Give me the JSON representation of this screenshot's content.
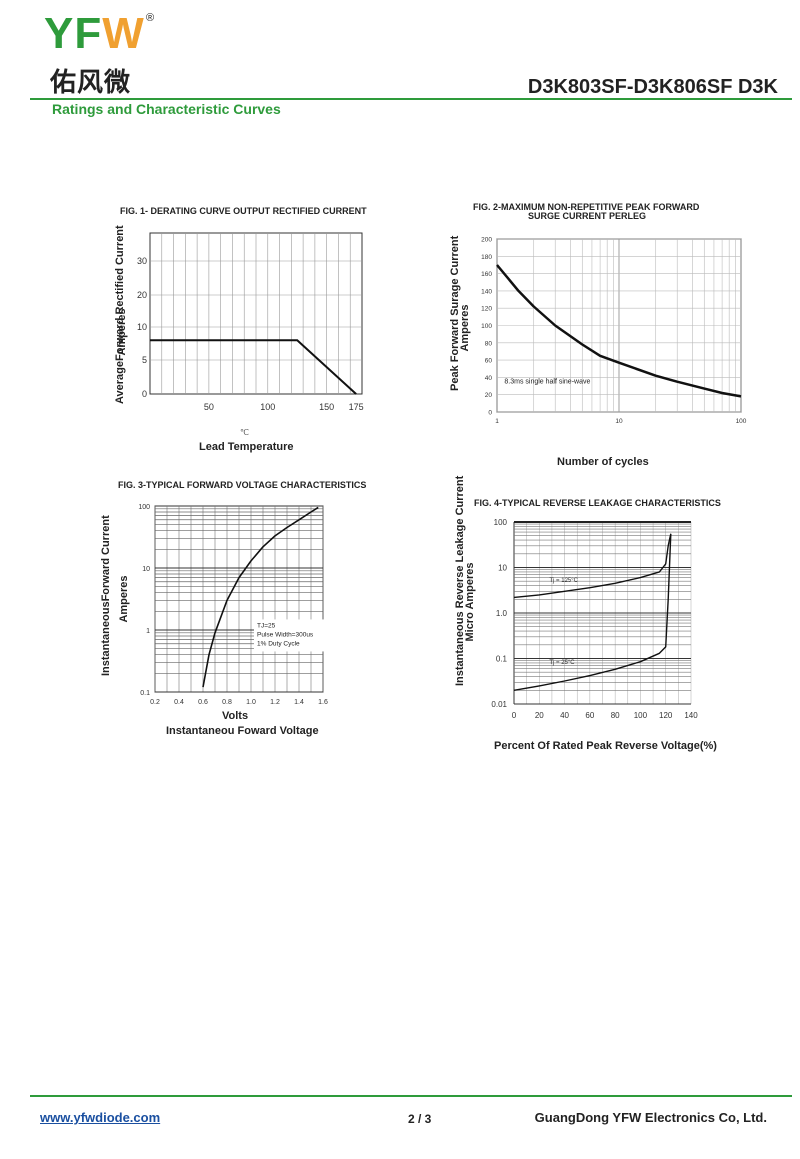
{
  "header": {
    "logo_latin": "YFW",
    "logo_registered": "®",
    "logo_chinese": "佑风微",
    "part_number": "D3K803SF-D3K806SF  D3K",
    "section_title": "Ratings and Characteristic Curves",
    "colors": {
      "brand_green": "#2e9b3b",
      "brand_orange": "#f0a030"
    }
  },
  "chart_data": [
    {
      "id": "fig1",
      "type": "line",
      "title": "FIG. 1- DERATING CURVE OUTPUT RECTIFIED CURRENT",
      "ylabel": "AverageForward Rectified Current",
      "ylabel2": "Amperes",
      "xlabel": "Lead Temperature",
      "x_unit": "℃",
      "xticks": [
        50,
        100,
        150,
        175
      ],
      "yticks": [
        0,
        5,
        10,
        20,
        30
      ],
      "xlim": [
        0,
        180
      ],
      "grid": true,
      "series": [
        {
          "x": [
            0,
            125,
            175
          ],
          "y": [
            8,
            8,
            0
          ]
        }
      ]
    },
    {
      "id": "fig2",
      "type": "line",
      "title": "FIG. 2-MAXIMUM NON-REPETITIVE PEAK FORWARD",
      "title2": "SURGE CURRENT PERLEG",
      "ylabel": "Peak  Forward Surage Current",
      "ylabel2": "Amperes",
      "xlabel": "Number of cycles",
      "xscale": "log",
      "xlim": [
        1,
        100
      ],
      "ylim": [
        0,
        200
      ],
      "xticks": [
        1,
        10,
        100
      ],
      "yticks": [
        0,
        20,
        40,
        60,
        80,
        100,
        120,
        140,
        160,
        180,
        200
      ],
      "grid": true,
      "annotation": "8.3ms single half sine-wave",
      "series": [
        {
          "x": [
            1,
            1.5,
            2,
            3,
            5,
            7,
            10,
            20,
            30,
            50,
            70,
            100
          ],
          "y": [
            170,
            140,
            122,
            100,
            78,
            65,
            57,
            42,
            35,
            27,
            22,
            18
          ]
        }
      ]
    },
    {
      "id": "fig3",
      "type": "line",
      "title": "FIG. 3-TYPICAL FORWARD VOLTAGE CHARACTERISTICS",
      "ylabel": "InstantaneousForward Current",
      "ylabel2": "Amperes",
      "xlabel": "Volts",
      "xlabel2": "Instantaneou Foward Voltage",
      "yscale": "log",
      "xlim": [
        0.2,
        1.6
      ],
      "ylim": [
        0.1,
        100
      ],
      "xticks": [
        0.2,
        0.4,
        0.6,
        0.8,
        1.0,
        1.2,
        1.4,
        1.6
      ],
      "xtick_labels": [
        "0.2",
        "0.4",
        "0.6",
        "0.8",
        "1.0",
        "1.2",
        "1.4",
        "1.6"
      ],
      "yticks": [
        0.1,
        1,
        10,
        100
      ],
      "ytick_labels": [
        "0.1",
        "1",
        "10",
        "100"
      ],
      "grid": true,
      "annotations": [
        "TJ=25",
        "Pulse Width=300us",
        "1% Duty Cycle"
      ],
      "series": [
        {
          "x": [
            0.6,
            0.65,
            0.7,
            0.8,
            0.9,
            1.0,
            1.1,
            1.2,
            1.3,
            1.4,
            1.5,
            1.56
          ],
          "y": [
            0.12,
            0.4,
            0.9,
            3,
            7,
            13,
            22,
            33,
            45,
            60,
            80,
            95
          ]
        }
      ]
    },
    {
      "id": "fig4",
      "type": "line",
      "title": "FIG. 4-TYPICAL REVERSE LEAKAGE CHARACTERISTICS",
      "ylabel": "Instantaneous  Reverse Leakage Current",
      "ylabel2": "Micro Amperes",
      "xlabel": "Percent Of Rated Peak Reverse Voltage(%)",
      "yscale": "log",
      "xlim": [
        0,
        140
      ],
      "ylim": [
        0.01,
        100
      ],
      "xticks": [
        0,
        20,
        40,
        60,
        80,
        100,
        120,
        140
      ],
      "yticks": [
        0.01,
        0.1,
        1.0,
        10,
        100
      ],
      "ytick_labels": [
        "0.01",
        "0.1",
        "1.0",
        "10",
        "100"
      ],
      "grid": true,
      "series": [
        {
          "name": "Tj = 125°C",
          "x": [
            0,
            20,
            40,
            60,
            80,
            100,
            115,
            120,
            122,
            124
          ],
          "y": [
            2.2,
            2.5,
            3,
            3.6,
            4.5,
            6,
            8,
            12,
            30,
            55
          ]
        },
        {
          "name": "Tj = 25°C",
          "x": [
            0,
            20,
            40,
            60,
            80,
            100,
            115,
            120,
            122,
            124
          ],
          "y": [
            0.02,
            0.025,
            0.032,
            0.042,
            0.058,
            0.085,
            0.13,
            0.18,
            2,
            55
          ]
        }
      ]
    }
  ],
  "footer": {
    "website": "www.yfwdiode.com",
    "page": "2 / 3",
    "company": "GuangDong YFW Electronics Co, Ltd."
  }
}
